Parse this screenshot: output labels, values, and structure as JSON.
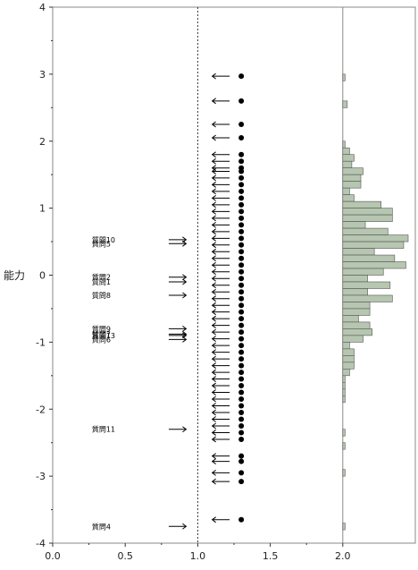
{
  "chart_data": {
    "type": "scatter",
    "ylabel": "能力",
    "xlim": [
      0,
      2.5
    ],
    "ylim": [
      -4,
      4
    ],
    "x_ticks": [
      "0.0",
      "0.5",
      "1.0",
      "1.5",
      "2.0"
    ],
    "y_ticks": [
      "4",
      "3",
      "2",
      "1",
      "0",
      "-1",
      "-2",
      "-3",
      "-4"
    ],
    "reference_lines": {
      "x_dashed": 1.0,
      "x_solid": 2.0
    },
    "items": [
      {
        "label": "質問10",
        "y": 0.53
      },
      {
        "label": "質問5",
        "y": 0.47
      },
      {
        "label": "質問2",
        "y": -0.03
      },
      {
        "label": "質問1",
        "y": -0.1
      },
      {
        "label": "質問8",
        "y": -0.3
      },
      {
        "label": "質問9",
        "y": -0.8
      },
      {
        "label": "質問7",
        "y": -0.88
      },
      {
        "label": "質問13",
        "y": -0.9
      },
      {
        "label": "質問6",
        "y": -0.96
      },
      {
        "label": "質問11",
        "y": -2.3
      },
      {
        "label": "質問4",
        "y": -3.75
      }
    ],
    "ability_points": [
      2.97,
      2.6,
      2.25,
      2.05,
      1.8,
      1.7,
      1.6,
      1.55,
      1.45,
      1.35,
      1.25,
      1.15,
      1.05,
      0.95,
      0.85,
      0.75,
      0.65,
      0.55,
      0.45,
      0.35,
      0.25,
      0.15,
      0.05,
      -0.05,
      -0.15,
      -0.25,
      -0.35,
      -0.45,
      -0.55,
      -0.65,
      -0.75,
      -0.85,
      -0.95,
      -1.05,
      -1.15,
      -1.25,
      -1.35,
      -1.45,
      -1.55,
      -1.65,
      -1.75,
      -1.85,
      -1.95,
      -2.05,
      -2.15,
      -2.25,
      -2.35,
      -2.45,
      -2.7,
      -2.78,
      -2.95,
      -3.08,
      -3.65
    ],
    "histogram": {
      "bin_width": 0.1,
      "bins": [
        {
          "y": 2.95,
          "count": 1
        },
        {
          "y": 2.55,
          "count": 2
        },
        {
          "y": 1.95,
          "count": 1
        },
        {
          "y": 1.85,
          "count": 3
        },
        {
          "y": 1.75,
          "count": 5
        },
        {
          "y": 1.65,
          "count": 4
        },
        {
          "y": 1.55,
          "count": 9
        },
        {
          "y": 1.45,
          "count": 8
        },
        {
          "y": 1.35,
          "count": 8
        },
        {
          "y": 1.25,
          "count": 3
        },
        {
          "y": 1.15,
          "count": 5
        },
        {
          "y": 1.05,
          "count": 17
        },
        {
          "y": 0.95,
          "count": 22
        },
        {
          "y": 0.85,
          "count": 22
        },
        {
          "y": 0.75,
          "count": 10
        },
        {
          "y": 0.65,
          "count": 20
        },
        {
          "y": 0.55,
          "count": 29
        },
        {
          "y": 0.45,
          "count": 27
        },
        {
          "y": 0.35,
          "count": 14
        },
        {
          "y": 0.25,
          "count": 23
        },
        {
          "y": 0.15,
          "count": 28
        },
        {
          "y": 0.05,
          "count": 18
        },
        {
          "y": -0.05,
          "count": 11
        },
        {
          "y": -0.15,
          "count": 21
        },
        {
          "y": -0.25,
          "count": 11
        },
        {
          "y": -0.35,
          "count": 22
        },
        {
          "y": -0.45,
          "count": 12
        },
        {
          "y": -0.55,
          "count": 12
        },
        {
          "y": -0.65,
          "count": 7
        },
        {
          "y": -0.75,
          "count": 12
        },
        {
          "y": -0.85,
          "count": 13
        },
        {
          "y": -0.95,
          "count": 9
        },
        {
          "y": -1.05,
          "count": 3
        },
        {
          "y": -1.15,
          "count": 5
        },
        {
          "y": -1.25,
          "count": 5
        },
        {
          "y": -1.35,
          "count": 5
        },
        {
          "y": -1.45,
          "count": 3
        },
        {
          "y": -1.55,
          "count": 1
        },
        {
          "y": -1.65,
          "count": 1
        },
        {
          "y": -1.75,
          "count": 1
        },
        {
          "y": -1.85,
          "count": 1
        },
        {
          "y": -2.35,
          "count": 1
        },
        {
          "y": -2.55,
          "count": 1
        },
        {
          "y": -2.95,
          "count": 1
        },
        {
          "y": -3.75,
          "count": 1
        }
      ]
    },
    "colors": {
      "histogram_fill": "#b6c6b0",
      "histogram_stroke": "#555555",
      "points": "#000000",
      "frame": "#888888"
    }
  }
}
